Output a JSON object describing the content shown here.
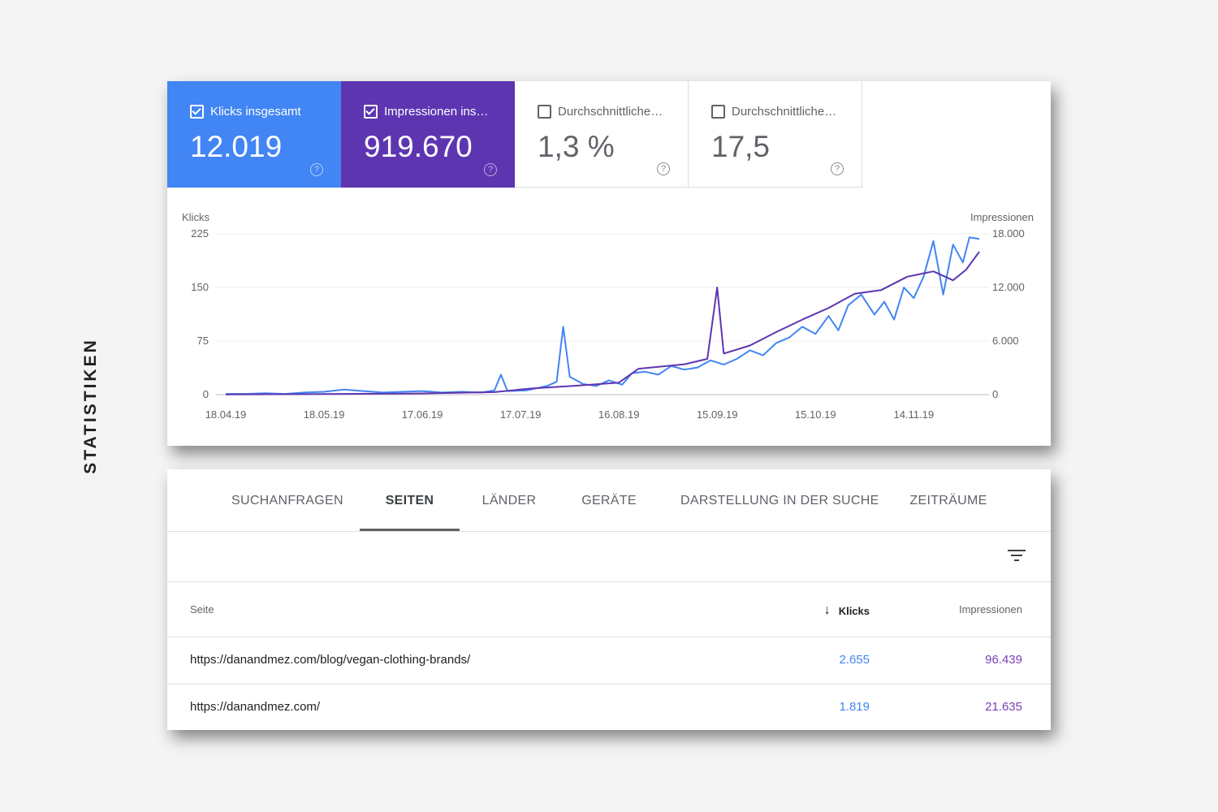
{
  "side_label": "STATISTIKEN",
  "colors": {
    "clicks": "#4285f4",
    "impressions": "#5e35b1",
    "impressions_text": "#7b3fb5"
  },
  "metrics": [
    {
      "label": "Klicks insgesamt",
      "value": "12.019",
      "checked": true,
      "help_icon": "help-circle-icon"
    },
    {
      "label": "Impressionen ins…",
      "value": "919.670",
      "checked": true,
      "help_icon": "help-circle-icon"
    },
    {
      "label": "Durchschnittliche…",
      "value": "1,3 %",
      "checked": false,
      "help_icon": "help-circle-icon"
    },
    {
      "label": "Durchschnittliche…",
      "value": "17,5",
      "checked": false,
      "help_icon": "help-circle-icon"
    }
  ],
  "chart_data": {
    "type": "line",
    "xlabel": "",
    "y_left_label": "Klicks",
    "y_right_label": "Impressionen",
    "y_left_ticks": [
      "0",
      "75",
      "150",
      "225"
    ],
    "y_right_ticks": [
      "0",
      "6.000",
      "12.000",
      "18.000"
    ],
    "y_left_range": [
      0,
      225
    ],
    "y_right_range": [
      0,
      18000
    ],
    "x_ticks": [
      "18.04.19",
      "18.05.19",
      "17.06.19",
      "17.07.19",
      "16.08.19",
      "15.09.19",
      "15.10.19",
      "14.11.19"
    ],
    "x_range": [
      "2019-04-18",
      "2019-12-04"
    ],
    "grid": true,
    "series": [
      {
        "name": "Klicks",
        "axis": "left",
        "points": [
          [
            "2019-04-18",
            1
          ],
          [
            "2019-04-24",
            1
          ],
          [
            "2019-04-30",
            2
          ],
          [
            "2019-05-06",
            1
          ],
          [
            "2019-05-12",
            3
          ],
          [
            "2019-05-18",
            4
          ],
          [
            "2019-05-24",
            7
          ],
          [
            "2019-05-30",
            5
          ],
          [
            "2019-06-05",
            3
          ],
          [
            "2019-06-11",
            4
          ],
          [
            "2019-06-17",
            5
          ],
          [
            "2019-06-23",
            3
          ],
          [
            "2019-06-29",
            4
          ],
          [
            "2019-07-05",
            3
          ],
          [
            "2019-07-09",
            6
          ],
          [
            "2019-07-11",
            28
          ],
          [
            "2019-07-13",
            5
          ],
          [
            "2019-07-19",
            6
          ],
          [
            "2019-07-25",
            12
          ],
          [
            "2019-07-28",
            18
          ],
          [
            "2019-07-30",
            95
          ],
          [
            "2019-08-01",
            25
          ],
          [
            "2019-08-05",
            15
          ],
          [
            "2019-08-09",
            12
          ],
          [
            "2019-08-13",
            20
          ],
          [
            "2019-08-17",
            14
          ],
          [
            "2019-08-20",
            30
          ],
          [
            "2019-08-24",
            32
          ],
          [
            "2019-08-28",
            28
          ],
          [
            "2019-09-01",
            40
          ],
          [
            "2019-09-05",
            35
          ],
          [
            "2019-09-09",
            38
          ],
          [
            "2019-09-13",
            48
          ],
          [
            "2019-09-17",
            42
          ],
          [
            "2019-09-21",
            50
          ],
          [
            "2019-09-25",
            62
          ],
          [
            "2019-09-29",
            55
          ],
          [
            "2019-10-03",
            72
          ],
          [
            "2019-10-07",
            80
          ],
          [
            "2019-10-11",
            95
          ],
          [
            "2019-10-15",
            85
          ],
          [
            "2019-10-19",
            110
          ],
          [
            "2019-10-22",
            90
          ],
          [
            "2019-10-25",
            125
          ],
          [
            "2019-10-29",
            140
          ],
          [
            "2019-11-02",
            112
          ],
          [
            "2019-11-05",
            130
          ],
          [
            "2019-11-08",
            105
          ],
          [
            "2019-11-11",
            150
          ],
          [
            "2019-11-14",
            135
          ],
          [
            "2019-11-17",
            165
          ],
          [
            "2019-11-20",
            215
          ],
          [
            "2019-11-23",
            140
          ],
          [
            "2019-11-26",
            210
          ],
          [
            "2019-11-29",
            185
          ],
          [
            "2019-12-01",
            220
          ],
          [
            "2019-12-04",
            218
          ]
        ]
      },
      {
        "name": "Impressionen",
        "axis": "right",
        "points": [
          [
            "2019-04-18",
            20
          ],
          [
            "2019-05-18",
            60
          ],
          [
            "2019-06-17",
            140
          ],
          [
            "2019-07-09",
            280
          ],
          [
            "2019-07-20",
            680
          ],
          [
            "2019-08-03",
            1000
          ],
          [
            "2019-08-16",
            1350
          ],
          [
            "2019-08-22",
            2900
          ],
          [
            "2019-09-05",
            3400
          ],
          [
            "2019-09-12",
            4000
          ],
          [
            "2019-09-15",
            12000
          ],
          [
            "2019-09-17",
            4600
          ],
          [
            "2019-09-25",
            5500
          ],
          [
            "2019-10-03",
            7000
          ],
          [
            "2019-10-11",
            8400
          ],
          [
            "2019-10-19",
            9700
          ],
          [
            "2019-10-27",
            11300
          ],
          [
            "2019-11-04",
            11700
          ],
          [
            "2019-11-12",
            13200
          ],
          [
            "2019-11-20",
            13800
          ],
          [
            "2019-11-26",
            12800
          ],
          [
            "2019-11-30",
            14000
          ],
          [
            "2019-12-04",
            16000
          ]
        ]
      }
    ]
  },
  "tabs": [
    {
      "label": "SUCHANFRAGEN",
      "active": false
    },
    {
      "label": "SEITEN",
      "active": true
    },
    {
      "label": "LÄNDER",
      "active": false
    },
    {
      "label": "GERÄTE",
      "active": false
    },
    {
      "label": "DARSTELLUNG IN DER SUCHE",
      "active": false
    },
    {
      "label": "ZEITRÄUME",
      "active": false
    }
  ],
  "filter_icon": "filter-list-icon",
  "table": {
    "columns": {
      "page": "Seite",
      "clicks": "Klicks",
      "impressions": "Impressionen"
    },
    "sort_icon": "arrow-down-icon",
    "rows": [
      {
        "page": "https://danandmez.com/blog/vegan-clothing-brands/",
        "clicks": "2.655",
        "impressions": "96.439"
      },
      {
        "page": "https://danandmez.com/",
        "clicks": "1.819",
        "impressions": "21.635"
      }
    ]
  }
}
